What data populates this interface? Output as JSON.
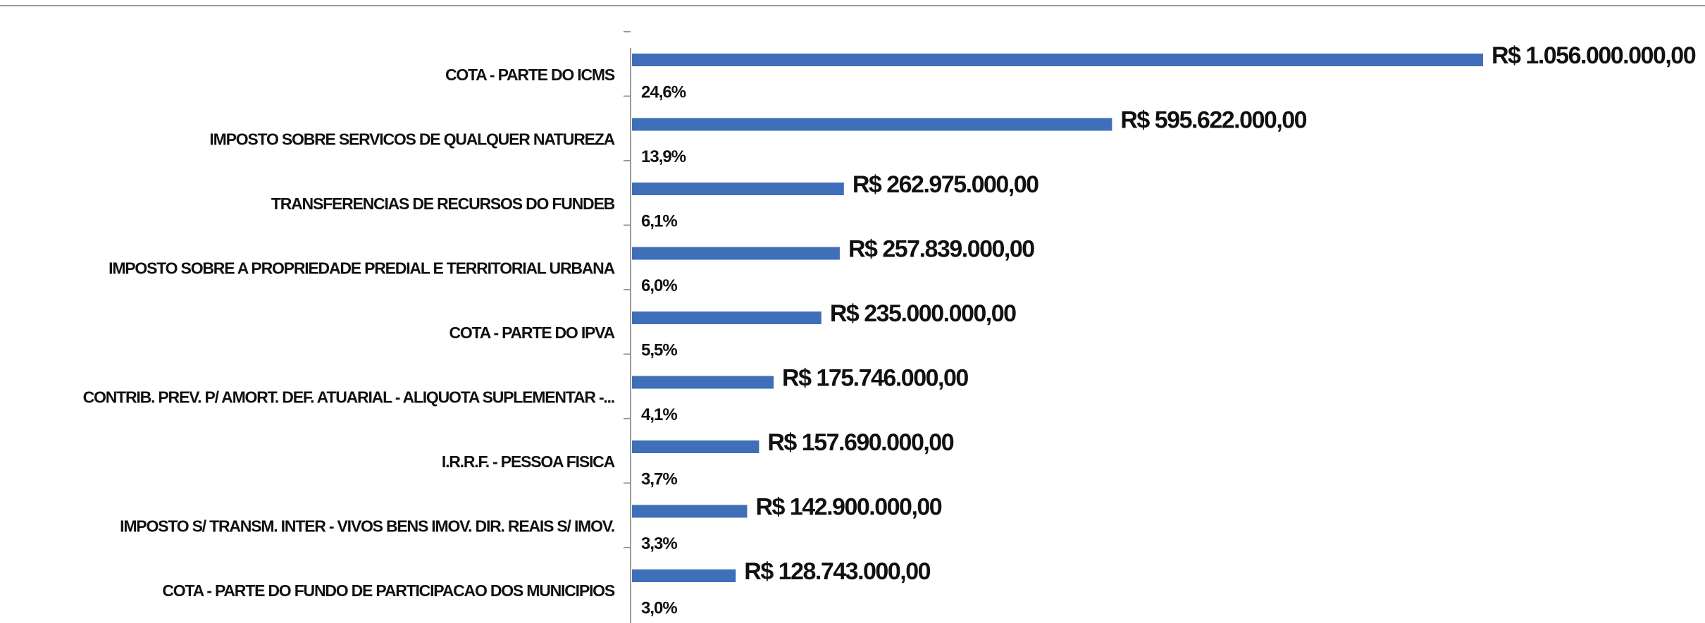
{
  "chart_data": {
    "type": "hbar",
    "categories": [
      "COTA - PARTE DO ICMS",
      "IMPOSTO SOBRE SERVICOS DE QUALQUER NATUREZA",
      "TRANSFERENCIAS DE RECURSOS DO FUNDEB",
      "IMPOSTO SOBRE A PROPRIEDADE PREDIAL E TERRITORIAL URBANA",
      "COTA - PARTE DO IPVA",
      "CONTRIB. PREV. P/ AMORT. DEF. ATUARIAL - ALIQUOTA SUPLEMENTAR -...",
      "I.R.R.F. - PESSOA FISICA",
      "IMPOSTO S/ TRANSM. INTER - VIVOS BENS IMOV. DIR. REAIS S/ IMOV.",
      "COTA - PARTE DO FUNDO DE PARTICIPACAO DOS MUNICIPIOS"
    ],
    "values": [
      1056000000,
      595622000,
      262975000,
      257839000,
      235000000,
      175746000,
      157690000,
      142900000,
      128743000
    ],
    "value_labels": [
      "R$ 1.056.000.000,00",
      "R$ 595.622.000,00",
      "R$ 262.975.000,00",
      "R$ 257.839.000,00",
      "R$ 235.000.000,00",
      "R$ 175.746.000,00",
      "R$ 157.690.000,00",
      "R$ 142.900.000,00",
      "R$ 128.743.000,00"
    ],
    "shares": [
      24.6,
      13.9,
      6.1,
      6.0,
      5.5,
      4.1,
      3.7,
      3.3,
      3.0
    ],
    "share_labels": [
      "24,6%",
      "13,9%",
      "6,1%",
      "6,0%",
      "5,5%",
      "4,1%",
      "3,7%",
      "3,3%",
      "3,0%"
    ],
    "color": "#3f6fb8"
  }
}
